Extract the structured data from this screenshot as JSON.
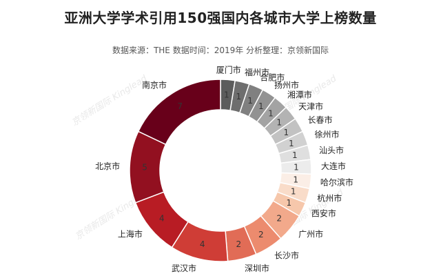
{
  "title": "亚洲大学学术引用150强国内各城市大学上榜数量",
  "subtitle": "数据来源：THE  数据时间：2019年  分析整理：京领新国际",
  "watermark": "京领新国际 Kinglead",
  "chart_data": {
    "type": "pie",
    "style": "donut",
    "slices": [
      {
        "label": "厦门市",
        "value": 1,
        "color": "#5c5c5c"
      },
      {
        "label": "福州市",
        "value": 1,
        "color": "#6e6e6e"
      },
      {
        "label": "合肥市",
        "value": 1,
        "color": "#808080"
      },
      {
        "label": "扬州市",
        "value": 1,
        "color": "#929292"
      },
      {
        "label": "湘潭市",
        "value": 1,
        "color": "#a3a3a3"
      },
      {
        "label": "天津市",
        "value": 1,
        "color": "#b3b3b3"
      },
      {
        "label": "长春市",
        "value": 1,
        "color": "#c2c2c2"
      },
      {
        "label": "徐州市",
        "value": 1,
        "color": "#d1d1d1"
      },
      {
        "label": "汕头市",
        "value": 1,
        "color": "#dfdfdf"
      },
      {
        "label": "大连市",
        "value": 1,
        "color": "#ececec"
      },
      {
        "label": "哈尔滨市",
        "value": 1,
        "color": "#fbeee6"
      },
      {
        "label": "杭州市",
        "value": 1,
        "color": "#f9dcc9"
      },
      {
        "label": "西安市",
        "value": 1,
        "color": "#f6c7ab"
      },
      {
        "label": "广州市",
        "value": 2,
        "color": "#f2a98b"
      },
      {
        "label": "长沙市",
        "value": 2,
        "color": "#ec8b6e"
      },
      {
        "label": "深圳市",
        "value": 2,
        "color": "#e16c56"
      },
      {
        "label": "武汉市",
        "value": 4,
        "color": "#cf3d36"
      },
      {
        "label": "上海市",
        "value": 4,
        "color": "#b81c24"
      },
      {
        "label": "北京市",
        "value": 5,
        "color": "#921020"
      },
      {
        "label": "南京市",
        "value": 7,
        "color": "#68001a"
      }
    ]
  }
}
